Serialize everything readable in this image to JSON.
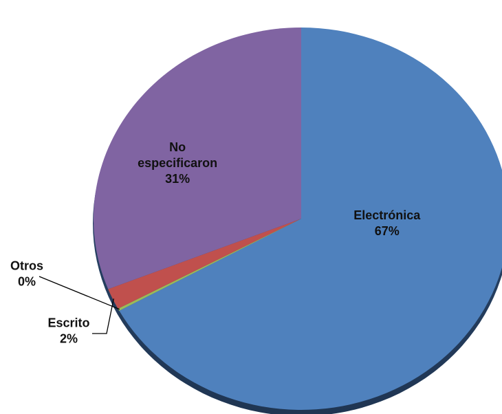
{
  "chart_data": {
    "type": "pie",
    "title": "",
    "slices": [
      {
        "label": "Electrónica",
        "pct_label": "67%",
        "value": 67,
        "color": "#4f81bd"
      },
      {
        "label": "Otros",
        "pct_label": "0%",
        "value": 0.2,
        "color": "#9bbb59"
      },
      {
        "label": "Escrito",
        "pct_label": "2%",
        "value": 1.8,
        "color": "#c0504d"
      },
      {
        "label": "No especificaron",
        "label_lines": [
          "No",
          "especificaron"
        ],
        "pct_label": "31%",
        "value": 31,
        "color": "#8064a2"
      }
    ],
    "start_angle_deg": 0,
    "direction": "clockwise",
    "legend": "none",
    "effect": "3d-shadow"
  }
}
